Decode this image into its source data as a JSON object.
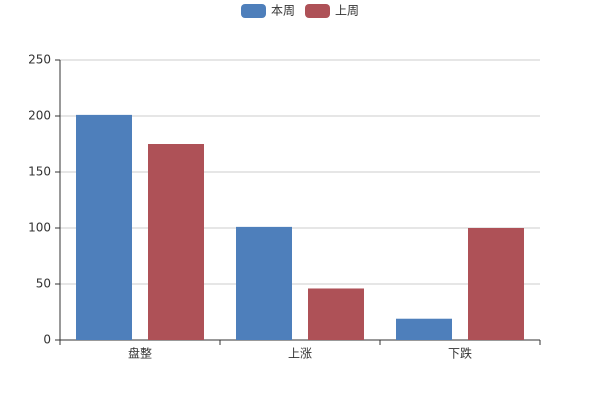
{
  "chart_data": {
    "type": "bar",
    "categories": [
      "盘整",
      "上涨",
      "下跌"
    ],
    "series": [
      {
        "name": "本周",
        "color": "#4e7fbb",
        "values": [
          201,
          101,
          19
        ]
      },
      {
        "name": "上周",
        "color": "#ae5157",
        "values": [
          175,
          46,
          100
        ]
      }
    ],
    "ylim": [
      0,
      250
    ],
    "yticks": [
      0,
      50,
      100,
      150,
      200,
      250
    ],
    "grid": true,
    "legend": "top"
  }
}
